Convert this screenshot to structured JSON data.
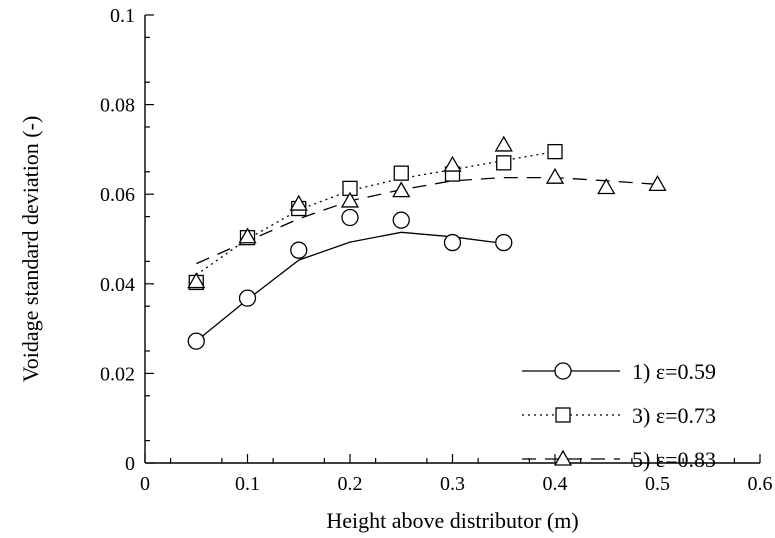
{
  "chart_data": {
    "type": "scatter",
    "xlabel": "Height above distributor (m)",
    "ylabel": "Voidage standard deviation (-)",
    "xlim": [
      0,
      0.6
    ],
    "ylim": [
      0,
      0.1
    ],
    "xticks": [
      "0",
      "0.1",
      "0.2",
      "0.3",
      "0.4",
      "0.5",
      "0.6"
    ],
    "yticks": [
      "0",
      "0.02",
      "0.04",
      "0.06",
      "0.08",
      "0.1"
    ],
    "grid": false,
    "legend_position": "bottom-right",
    "series": [
      {
        "name": "1) ε=0.59",
        "marker": "circle",
        "line_style": "solid",
        "points": [
          [
            0.05,
            0.0272
          ],
          [
            0.1,
            0.0368
          ],
          [
            0.15,
            0.0475
          ],
          [
            0.2,
            0.0548
          ],
          [
            0.25,
            0.0542
          ],
          [
            0.3,
            0.0492
          ],
          [
            0.35,
            0.0492
          ]
        ],
        "fit": [
          [
            0.05,
            0.0272
          ],
          [
            0.1,
            0.0365
          ],
          [
            0.15,
            0.0453
          ],
          [
            0.2,
            0.0493
          ],
          [
            0.25,
            0.0515
          ],
          [
            0.3,
            0.0505
          ],
          [
            0.35,
            0.049
          ]
        ]
      },
      {
        "name": "3) ε=0.73",
        "marker": "square",
        "line_style": "dotted",
        "points": [
          [
            0.05,
            0.0403
          ],
          [
            0.1,
            0.0503
          ],
          [
            0.15,
            0.0568
          ],
          [
            0.2,
            0.0613
          ],
          [
            0.25,
            0.0647
          ],
          [
            0.3,
            0.0645
          ],
          [
            0.35,
            0.067
          ],
          [
            0.4,
            0.0695
          ]
        ],
        "fit": [
          [
            0.05,
            0.042
          ],
          [
            0.1,
            0.05
          ],
          [
            0.15,
            0.0565
          ],
          [
            0.2,
            0.0608
          ],
          [
            0.25,
            0.0635
          ],
          [
            0.3,
            0.0655
          ],
          [
            0.35,
            0.0675
          ],
          [
            0.4,
            0.0695
          ]
        ]
      },
      {
        "name": "5) ε=0.83",
        "marker": "triangle",
        "line_style": "dashed",
        "points": [
          [
            0.05,
            0.0405
          ],
          [
            0.1,
            0.0505
          ],
          [
            0.15,
            0.0578
          ],
          [
            0.2,
            0.0585
          ],
          [
            0.25,
            0.0608
          ],
          [
            0.3,
            0.0665
          ],
          [
            0.35,
            0.071
          ],
          [
            0.4,
            0.0638
          ],
          [
            0.45,
            0.0615
          ],
          [
            0.5,
            0.0622
          ]
        ],
        "fit": [
          [
            0.05,
            0.0445
          ],
          [
            0.1,
            0.0495
          ],
          [
            0.15,
            0.0545
          ],
          [
            0.2,
            0.0585
          ],
          [
            0.25,
            0.061
          ],
          [
            0.3,
            0.063
          ],
          [
            0.35,
            0.0637
          ],
          [
            0.4,
            0.0637
          ],
          [
            0.45,
            0.063
          ],
          [
            0.5,
            0.0622
          ]
        ]
      }
    ]
  }
}
